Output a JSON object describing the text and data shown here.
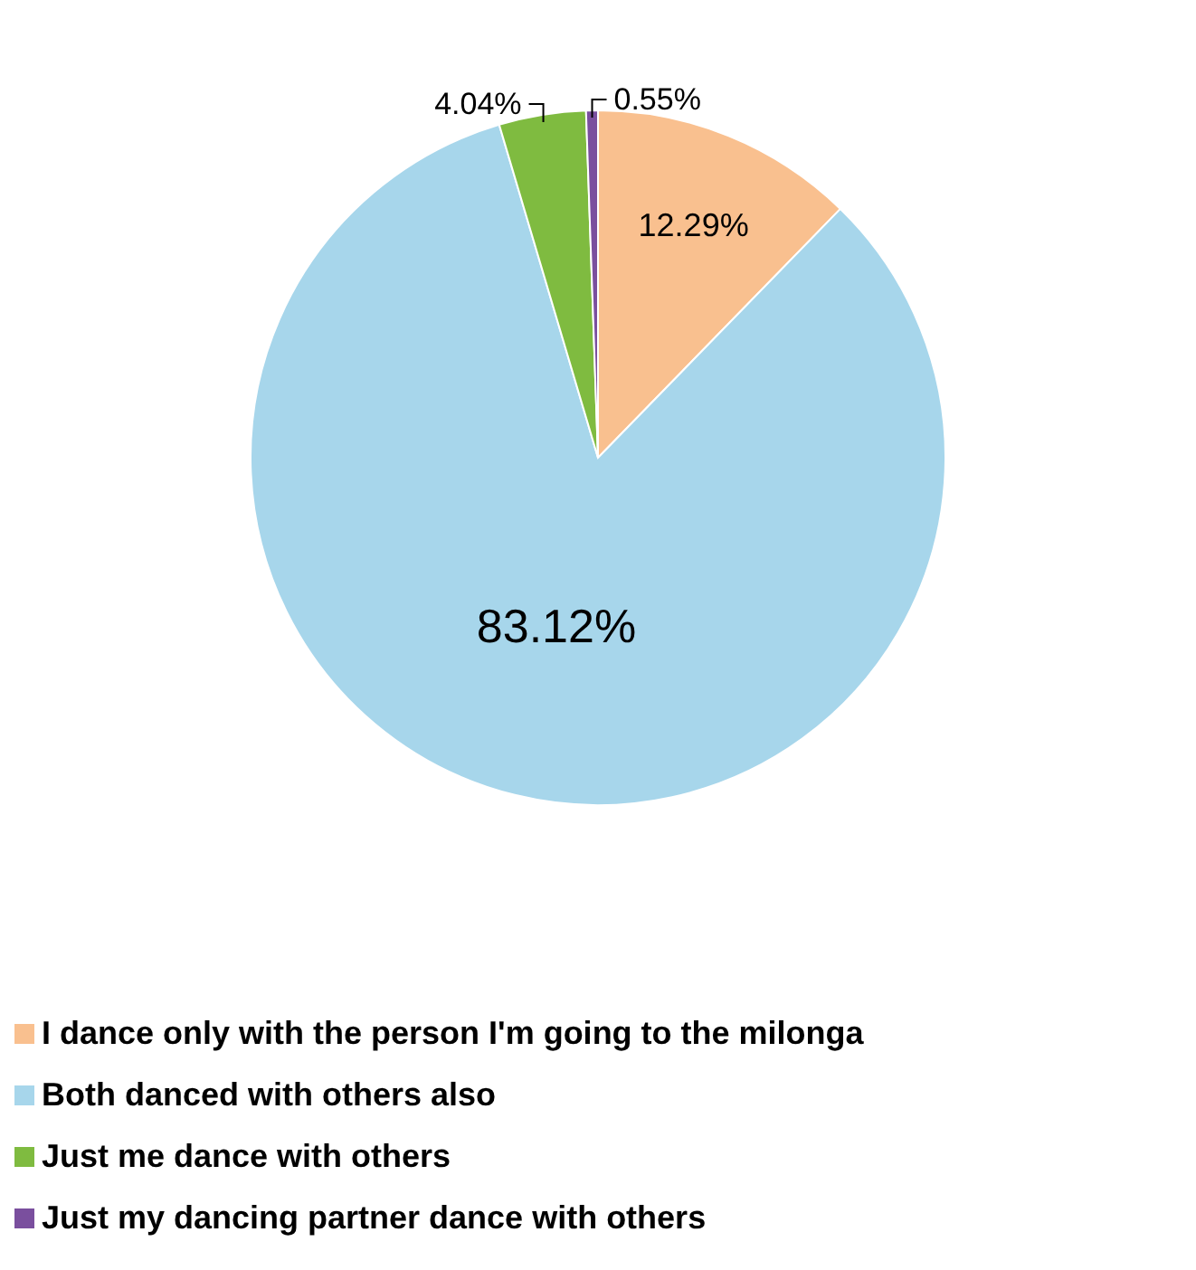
{
  "chart_data": {
    "type": "pie",
    "categories": [
      "I dance only with the person I'm going to the milonga",
      "Both danced with others also",
      "Just me dance with others",
      "Just my dancing partner dance with others"
    ],
    "values": [
      12.29,
      83.12,
      4.04,
      0.55
    ],
    "value_labels": [
      "12.29%",
      "83.12%",
      "4.04%",
      "0.55%"
    ],
    "colors": [
      "#f9c08f",
      "#a7d6eb",
      "#7fbb40",
      "#7a4f9e"
    ],
    "legend": "bottom"
  }
}
